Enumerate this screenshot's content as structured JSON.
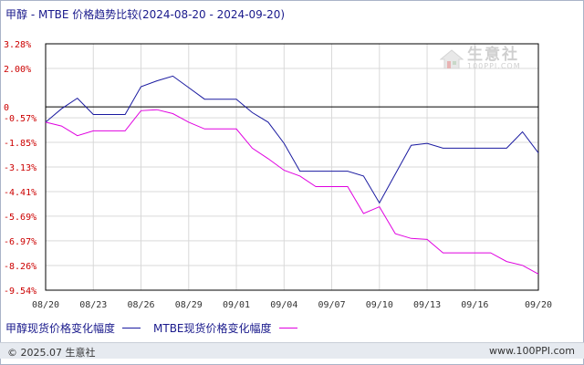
{
  "title": "甲醇 - MTBE 价格趋势比较(2024-08-20 - 2024-09-20)",
  "watermark": {
    "name": "生意社",
    "url": "100PPI.COM"
  },
  "footer": {
    "left": "© 2025.07 生意社",
    "right": "www.100PPI.com"
  },
  "colors": {
    "series1": "#1a1aa0",
    "series2": "#e000e0",
    "axis": "#000000",
    "grid": "#d9d9d9",
    "label": "#cc0000",
    "frame": "#aab4c8"
  },
  "chart_data": {
    "type": "line",
    "title": "甲醇 - MTBE 价格趋势比较(2024-08-20 - 2024-09-20)",
    "x_tick_labels": [
      "08/20",
      "08/23",
      "08/26",
      "08/29",
      "09/01",
      "09/04",
      "09/07",
      "09/10",
      "09/13",
      "09/16",
      "09/20"
    ],
    "y_tick_labels": [
      "3.28%",
      "2.00%",
      "0",
      "-0.57%",
      "-1.85%",
      "-3.13%",
      "-4.41%",
      "-5.69%",
      "-6.97%",
      "-8.26%",
      "-9.54%"
    ],
    "y_ticks": [
      3.28,
      2.0,
      0,
      -0.57,
      -1.85,
      -3.13,
      -4.41,
      -5.69,
      -6.97,
      -8.26,
      -9.54
    ],
    "ylim": [
      -9.54,
      3.28
    ],
    "x": [
      0,
      1,
      2,
      3,
      4,
      5,
      6,
      7,
      8,
      9,
      10,
      11,
      12,
      13,
      14,
      15,
      16,
      17,
      18,
      19,
      20,
      21,
      22,
      23,
      24,
      25,
      26,
      27,
      28,
      29,
      30,
      31
    ],
    "series": [
      {
        "name": "甲醇现货价格变化幅度",
        "values": [
          -0.8,
          -0.1,
          0.45,
          -0.4,
          -0.4,
          -0.4,
          1.05,
          1.35,
          1.6,
          1.0,
          0.4,
          0.4,
          0.4,
          -0.3,
          -0.8,
          -1.9,
          -3.35,
          -3.35,
          -3.35,
          -3.35,
          -3.6,
          -5.0,
          -3.5,
          -2.0,
          -1.9,
          -2.15,
          -2.15,
          -2.15,
          -2.15,
          -2.15,
          -1.3,
          -2.4
        ]
      },
      {
        "name": "MTBE现货价格变化幅度",
        "values": [
          -0.8,
          -1.0,
          -1.5,
          -1.25,
          -1.25,
          -1.25,
          -0.2,
          -0.15,
          -0.35,
          -0.8,
          -1.15,
          -1.15,
          -1.15,
          -2.15,
          -2.7,
          -3.3,
          -3.6,
          -4.15,
          -4.15,
          -4.15,
          -5.55,
          -5.2,
          -6.6,
          -6.85,
          -6.9,
          -7.6,
          -7.6,
          -7.6,
          -7.6,
          -8.05,
          -8.25,
          -8.7
        ]
      }
    ]
  }
}
